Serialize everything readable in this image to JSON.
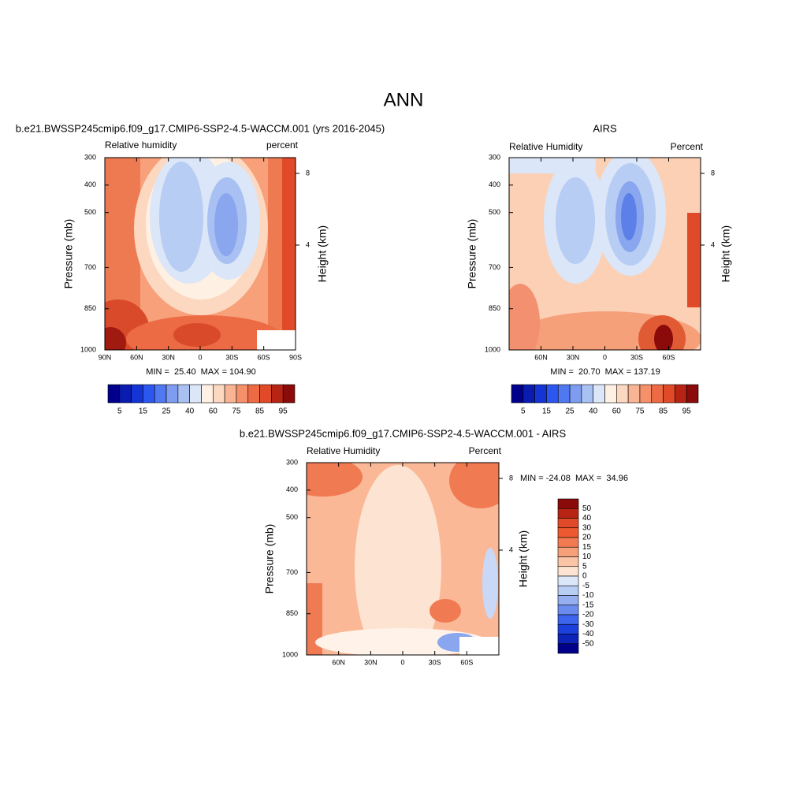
{
  "title": "ANN",
  "chart_data": [
    {
      "type": "contour",
      "title": "b.e21.BWSSP245cmip6.f09_g17.CMIP6-SSP2-4.5-WACCM.001 (yrs 2016-2045)",
      "left_string": "Relative humidity",
      "right_string": "percent",
      "ylabel": "Pressure (mb)",
      "y2label": "Height (km)",
      "stats_text": "MIN =  25.40  MAX = 104.90",
      "xlim": [
        90,
        -90
      ],
      "xticks": [
        {
          "value": 90,
          "label": "90N"
        },
        {
          "value": 60,
          "label": "60N"
        },
        {
          "value": 30,
          "label": "30N"
        },
        0,
        {
          "value": -30,
          "label": "30S"
        },
        {
          "value": -60,
          "label": "60S"
        },
        {
          "value": -90,
          "label": "90S"
        }
      ],
      "ylim": [
        1000,
        300
      ],
      "yticks": [
        1000,
        850,
        700,
        500,
        400,
        300
      ],
      "y2lim": [
        -1.85,
        8.88
      ],
      "y2ticks": [
        4,
        8
      ],
      "colorbar": {
        "orientation": "horizontal",
        "labels": [
          5,
          15,
          25,
          40,
          60,
          75,
          85,
          95
        ],
        "colors": [
          "#00008b",
          "#0a1cb0",
          "#1434d6",
          "#2c56f0",
          "#5078f0",
          "#7e9cf0",
          "#a9c0f2",
          "#dbe6f8",
          "#fff0e4",
          "#fcd8c0",
          "#f9b494",
          "#f6906a",
          "#ee6a44",
          "#e04a28",
          "#b82414",
          "#8b0a0a"
        ]
      }
    },
    {
      "type": "contour",
      "title": "AIRS",
      "left_string": "Relative Humidity",
      "right_string": "Percent",
      "ylabel": "Pressure (mb)",
      "y2label": "Height (km)",
      "stats_text": "MIN =  20.70  MAX = 137.19",
      "xlim": [
        90,
        -90
      ],
      "xticks": [
        {
          "value": 60,
          "label": "60N"
        },
        {
          "value": 30,
          "label": "30N"
        },
        0,
        {
          "value": -30,
          "label": "30S"
        },
        {
          "value": -60,
          "label": "60S"
        }
      ],
      "ylim": [
        1000,
        300
      ],
      "yticks": [
        1000,
        850,
        700,
        500,
        400,
        300
      ],
      "y2lim": [
        -1.85,
        8.88
      ],
      "y2ticks": [
        4,
        8
      ],
      "colorbar": {
        "orientation": "horizontal",
        "labels": [
          5,
          15,
          25,
          40,
          60,
          75,
          85,
          95
        ],
        "colors": [
          "#00008b",
          "#0a1cb0",
          "#1434d6",
          "#2c56f0",
          "#5078f0",
          "#7e9cf0",
          "#a9c0f2",
          "#dbe6f8",
          "#fff0e4",
          "#fcd8c0",
          "#f9b494",
          "#f6906a",
          "#ee6a44",
          "#e04a28",
          "#b82414",
          "#8b0a0a"
        ]
      }
    },
    {
      "type": "contour",
      "title": "b.e21.BWSSP245cmip6.f09_g17.CMIP6-SSP2-4.5-WACCM.001 - AIRS",
      "left_string": "Relative Humidity",
      "right_string": "Percent",
      "ylabel": "Pressure (mb)",
      "y2label": "Height (km)",
      "stats_text": "MIN = -24.08  MAX =  34.96",
      "xlim": [
        90,
        -90
      ],
      "xticks": [
        {
          "value": 60,
          "label": "60N"
        },
        {
          "value": 30,
          "label": "30N"
        },
        0,
        {
          "value": -30,
          "label": "30S"
        },
        {
          "value": -60,
          "label": "60S"
        }
      ],
      "ylim": [
        1000,
        300
      ],
      "yticks": [
        1000,
        850,
        700,
        500,
        400,
        300
      ],
      "y2lim": [
        -1.85,
        8.88
      ],
      "y2ticks": [
        4,
        8
      ],
      "colorbar": {
        "orientation": "vertical",
        "labels": [
          50,
          40,
          30,
          20,
          15,
          10,
          5,
          0,
          -5,
          -10,
          -15,
          -20,
          -30,
          -40,
          -50
        ],
        "colors": [
          "#8b0a0a",
          "#b82414",
          "#e04a28",
          "#ee5a30",
          "#f27a52",
          "#f6a07a",
          "#fbc4a6",
          "#fde4d2",
          "#dbe6f8",
          "#b8cdf4",
          "#94aef0",
          "#6a8cee",
          "#3c64ec",
          "#1c40dc",
          "#0c24b8",
          "#00008b"
        ]
      }
    }
  ]
}
